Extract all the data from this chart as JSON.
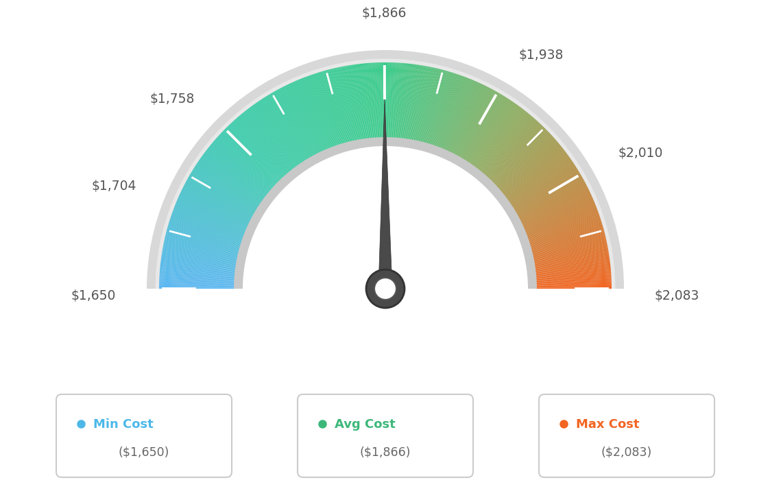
{
  "min_val": 1650,
  "avg_val": 1866,
  "max_val": 2083,
  "tick_labels": [
    "$1,650",
    "$1,704",
    "$1,758",
    "$1,866",
    "$1,938",
    "$2,010",
    "$2,083"
  ],
  "tick_values": [
    1650,
    1704,
    1758,
    1866,
    1938,
    2010,
    2083
  ],
  "all_tick_values": [
    1650,
    1686,
    1722,
    1758,
    1794,
    1830,
    1866,
    1902,
    1938,
    1974,
    2010,
    2047,
    2083
  ],
  "legend_items": [
    {
      "label": "Min Cost",
      "value": "($1,650)",
      "color": "#4db8e8"
    },
    {
      "label": "Avg Cost",
      "value": "($1,866)",
      "color": "#3db87a"
    },
    {
      "label": "Max Cost",
      "value": "($2,083)",
      "color": "#f26522"
    }
  ],
  "background_color": "#ffffff",
  "needle_value": 1866,
  "gauge_colors": {
    "blue": [
      0.36,
      0.72,
      0.95
    ],
    "teal_green": [
      0.24,
      0.76,
      0.55
    ],
    "green": [
      0.24,
      0.76,
      0.55
    ],
    "olive": [
      0.55,
      0.6,
      0.3
    ],
    "orange": [
      0.95,
      0.4,
      0.13
    ]
  }
}
